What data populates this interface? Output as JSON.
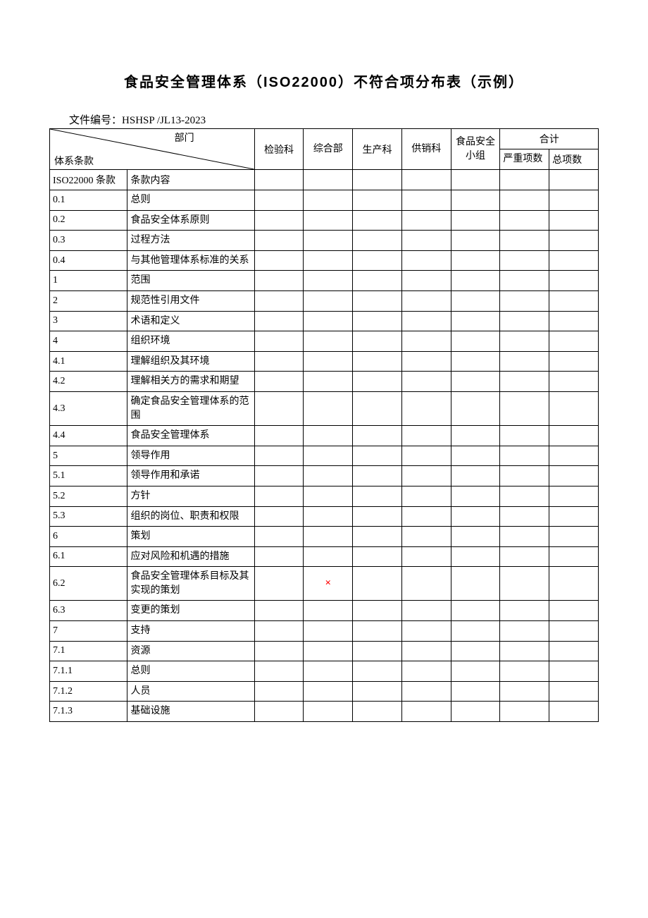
{
  "title": "食品安全管理体系（ISO22000）不符合项分布表（示例）",
  "doc_number_label": "文件编号：",
  "doc_number": "HSHSP /JL13-2023",
  "header": {
    "diag_top": "部门",
    "diag_bottom": "体系条款",
    "dept1": "检验科",
    "dept2": "综合部",
    "dept3": "生产科",
    "dept4": "供销科",
    "dept5": "食品安全小组",
    "total_label": "合计",
    "total_sub1": "严重项数",
    "total_sub2": "总项数"
  },
  "columns": {
    "clause_header": "ISO22000 条款",
    "content_header": "条款内容"
  },
  "rows": [
    {
      "clause": "0.1",
      "content": "总则"
    },
    {
      "clause": "0.2",
      "content": "食品安全体系原则"
    },
    {
      "clause": "0.3",
      "content": "过程方法"
    },
    {
      "clause": "0.4",
      "content": "与其他管理体系标准的关系"
    },
    {
      "clause": "1",
      "content": "范围"
    },
    {
      "clause": "2",
      "content": "规范性引用文件"
    },
    {
      "clause": "3",
      "content": "术语和定义"
    },
    {
      "clause": "4",
      "content": "组织环境"
    },
    {
      "clause": "4.1",
      "content": "理解组织及其环境"
    },
    {
      "clause": "4.2",
      "content": "理解相关方的需求和期望"
    },
    {
      "clause": "4.3",
      "content": "确定食品安全管理体系的范围"
    },
    {
      "clause": "4.4",
      "content": "食品安全管理体系"
    },
    {
      "clause": "5",
      "content": "领导作用"
    },
    {
      "clause": "5.1",
      "content": "领导作用和承诺"
    },
    {
      "clause": "5.2",
      "content": "方针"
    },
    {
      "clause": "5.3",
      "content": "组织的岗位、职责和权限"
    },
    {
      "clause": "6",
      "content": "策划"
    },
    {
      "clause": "6.1",
      "content": "应对风险和机遇的措施"
    },
    {
      "clause": "6.2",
      "content": "食品安全管理体系目标及其实现的策划",
      "mark_col": 2,
      "mark": "×"
    },
    {
      "clause": "6.3",
      "content": "变更的策划"
    },
    {
      "clause": "7",
      "content": "支持"
    },
    {
      "clause": "7.1",
      "content": "资源"
    },
    {
      "clause": "7.1.1",
      "content": "总则"
    },
    {
      "clause": "7.1.2",
      "content": "人员"
    },
    {
      "clause": "7.1.3",
      "content": "基础设施"
    }
  ],
  "mark_color": "#ff0000",
  "background_color": "#ffffff",
  "border_color": "#000000"
}
